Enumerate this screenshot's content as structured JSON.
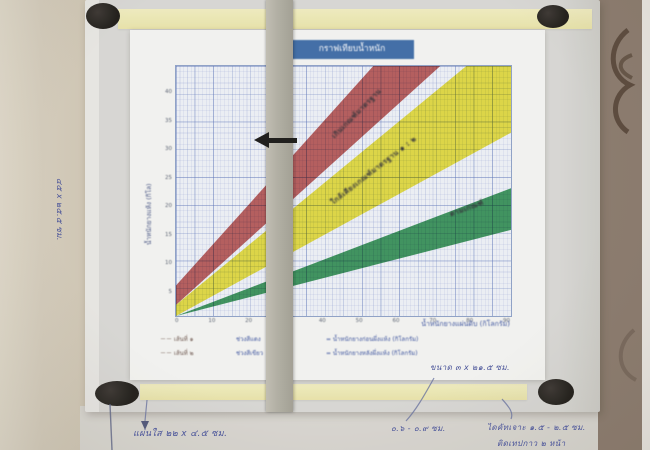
{
  "chart_data": {
    "type": "area",
    "title": "กราฟเทียบน้ำหนัก",
    "xlabel": "น้ำหนักยางแผ่นดิบ (กิโลกรัม)",
    "ylabel": "น้ำหนักยางแห้ง (กิโล)",
    "xlim": [
      0,
      90
    ],
    "ylim": [
      0,
      45
    ],
    "x_ticks": [
      0,
      10,
      20,
      30,
      40,
      50,
      60,
      70,
      80,
      90
    ],
    "y_ticks": [
      5,
      10,
      15,
      20,
      25,
      30,
      35,
      40
    ],
    "grid": true,
    "legend_position": "bottom",
    "bands": [
      {
        "name": "red-zone",
        "label": "เกินเกณฑ์มาตรฐาน",
        "color": "#c65351",
        "polygon": [
          [
            0,
            2
          ],
          [
            0,
            5.5
          ],
          [
            53,
            45
          ],
          [
            71,
            45
          ]
        ]
      },
      {
        "name": "yellow-zone",
        "label": "ใกล้เคียงเกณฑ์มาตรฐาน ๑ : ๒",
        "color": "#efe32c",
        "polygon": [
          [
            0,
            0
          ],
          [
            0,
            2
          ],
          [
            78,
            45
          ],
          [
            90,
            45
          ],
          [
            90,
            33
          ]
        ]
      },
      {
        "name": "green-zone",
        "label": "ตามเกณฑ์",
        "color": "#2d9751",
        "polygon": [
          [
            0,
            0
          ],
          [
            90,
            23
          ],
          [
            90,
            15.5
          ]
        ]
      }
    ]
  },
  "legend": {
    "rows": [
      {
        "marker": "－－ เส้นที่ ๑",
        "mid": "ช่วงสีแดง",
        "right": "= น้ำหนักยางก่อนผึ่งแห้ง (กิโลกรัม)"
      },
      {
        "marker": "－－ เส้นที่ ๒",
        "mid": "ช่วงสีเขียว",
        "right": "= น้ำหนักยางหลังผึ่งแห้ง (กิโลกรัม)"
      }
    ]
  },
  "annotations": {
    "left_vertical": "๔๕ x ๒๕.๕ ซม.",
    "size_note": "ขนาด ๓ x ๒๑.๕ ซม.",
    "clear_sheet_note": "แผ่นใส ๒๒ x ๔.๕ ซม.",
    "gap_note": "๐.๖ - ๐.๙ ซม.",
    "diecut_note": "ไดคัทเจาะ ๑.๕ - ๒.๕ ซม.",
    "diecut_note2": "ติดเทปกาว ๒ หน้า"
  },
  "colors": {
    "banner_blue": "#3f6fae",
    "ink_blue": "#4752a0",
    "band_red": "#c65351",
    "band_yellow": "#efe32c",
    "band_green": "#2d9751",
    "tape_yellow": "#f2edb6",
    "magnet_black": "#24211d",
    "slider_gray": "#b3b0a3"
  },
  "icons": {
    "slider_arrow": "left-arrow"
  }
}
